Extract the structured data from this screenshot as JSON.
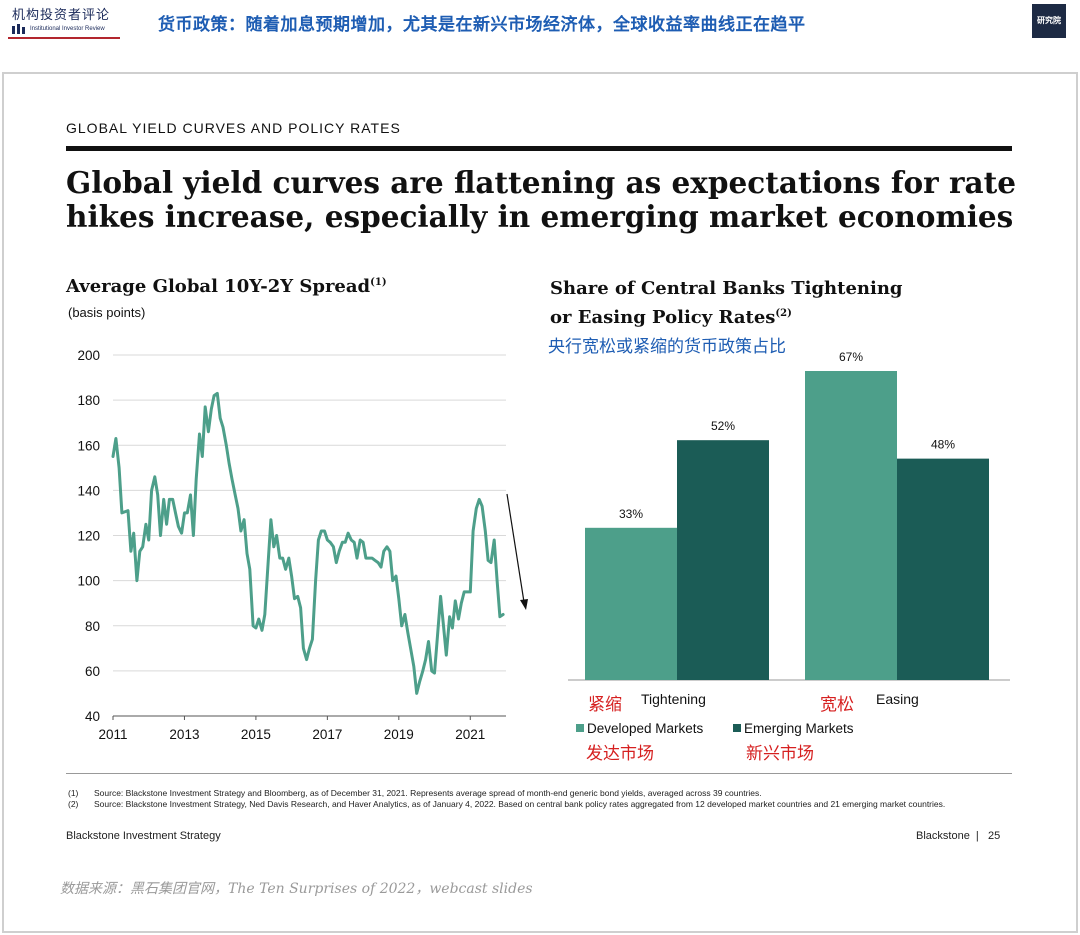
{
  "header": {
    "logo_cn": "机构投资者评论",
    "logo_en": "Institutional Investor Review",
    "headline": "货币政策：随着加息预期增加，尤其是在新兴市场经济体，全球收益率曲线正在趋平",
    "corner_logo_text": "研究院"
  },
  "slide": {
    "section_label": "GLOBAL YIELD CURVES AND POLICY RATES",
    "title_line1": "Global yield curves are flattening as expectations for rate",
    "title_line2": "hikes increase, especially in emerging market economies"
  },
  "left_chart": {
    "title": "Average Global 10Y-2Y Spread",
    "title_note": "(1)",
    "subtitle": "(basis points)"
  },
  "right_chart": {
    "title_line1": "Share of Central Banks Tightening",
    "title_line2": "or Easing Policy Rates",
    "title_note": "(2)",
    "cn_title": "央行宽松或紧缩的货币政策占比",
    "tightening_cn": "紧缩",
    "tightening_en": "Tightening",
    "easing_cn": "宽松",
    "easing_en": "Easing",
    "legend_dev": "Developed Markets",
    "legend_dev_cn": "发达市场",
    "legend_em": "Emerging Markets",
    "legend_em_cn": "新兴市场"
  },
  "chart_data": [
    {
      "type": "line",
      "title": "Average Global 10Y-2Y Spread",
      "ylabel": "(basis points)",
      "ylim": [
        40,
        200
      ],
      "xlim": [
        2011,
        2022.0
      ],
      "yticks": [
        40,
        60,
        80,
        100,
        120,
        140,
        160,
        180,
        200
      ],
      "xticks": [
        2011,
        2013,
        2015,
        2017,
        2019,
        2021
      ],
      "grid": true,
      "color": "#4d9f8a",
      "trend_arrow": "down",
      "points": [
        [
          2011.0,
          155
        ],
        [
          2011.08,
          163
        ],
        [
          2011.17,
          150
        ],
        [
          2011.25,
          130
        ],
        [
          2011.42,
          131
        ],
        [
          2011.5,
          113
        ],
        [
          2011.58,
          121
        ],
        [
          2011.67,
          100
        ],
        [
          2011.75,
          113
        ],
        [
          2011.83,
          115
        ],
        [
          2011.92,
          125
        ],
        [
          2012.0,
          118
        ],
        [
          2012.08,
          140
        ],
        [
          2012.17,
          146
        ],
        [
          2012.25,
          138
        ],
        [
          2012.33,
          120
        ],
        [
          2012.42,
          136
        ],
        [
          2012.5,
          125
        ],
        [
          2012.58,
          136
        ],
        [
          2012.67,
          136
        ],
        [
          2012.75,
          130
        ],
        [
          2012.83,
          124
        ],
        [
          2012.92,
          121
        ],
        [
          2013.0,
          130
        ],
        [
          2013.08,
          130
        ],
        [
          2013.17,
          138
        ],
        [
          2013.25,
          120
        ],
        [
          2013.33,
          145
        ],
        [
          2013.42,
          165
        ],
        [
          2013.5,
          155
        ],
        [
          2013.58,
          177
        ],
        [
          2013.67,
          166
        ],
        [
          2013.75,
          176
        ],
        [
          2013.83,
          182
        ],
        [
          2013.92,
          183
        ],
        [
          2014.0,
          172
        ],
        [
          2014.08,
          168
        ],
        [
          2014.17,
          160
        ],
        [
          2014.25,
          152
        ],
        [
          2014.33,
          145
        ],
        [
          2014.42,
          138
        ],
        [
          2014.5,
          132
        ],
        [
          2014.58,
          122
        ],
        [
          2014.67,
          127
        ],
        [
          2014.75,
          112
        ],
        [
          2014.83,
          105
        ],
        [
          2014.92,
          80
        ],
        [
          2015.0,
          79
        ],
        [
          2015.08,
          83
        ],
        [
          2015.17,
          78
        ],
        [
          2015.25,
          85
        ],
        [
          2015.33,
          105
        ],
        [
          2015.42,
          127
        ],
        [
          2015.5,
          115
        ],
        [
          2015.58,
          120
        ],
        [
          2015.67,
          110
        ],
        [
          2015.75,
          110
        ],
        [
          2015.83,
          105
        ],
        [
          2015.92,
          110
        ],
        [
          2016.0,
          102
        ],
        [
          2016.08,
          92
        ],
        [
          2016.17,
          93
        ],
        [
          2016.25,
          88
        ],
        [
          2016.33,
          70
        ],
        [
          2016.42,
          65
        ],
        [
          2016.5,
          70
        ],
        [
          2016.58,
          74
        ],
        [
          2016.67,
          100
        ],
        [
          2016.75,
          118
        ],
        [
          2016.83,
          122
        ],
        [
          2016.92,
          122
        ],
        [
          2017.0,
          118
        ],
        [
          2017.08,
          117
        ],
        [
          2017.17,
          115
        ],
        [
          2017.25,
          108
        ],
        [
          2017.33,
          113
        ],
        [
          2017.42,
          117
        ],
        [
          2017.5,
          117
        ],
        [
          2017.58,
          121
        ],
        [
          2017.67,
          118
        ],
        [
          2017.75,
          117
        ],
        [
          2017.83,
          110
        ],
        [
          2017.92,
          118
        ],
        [
          2018.0,
          117
        ],
        [
          2018.08,
          110
        ],
        [
          2018.17,
          110
        ],
        [
          2018.25,
          110
        ],
        [
          2018.33,
          109
        ],
        [
          2018.42,
          108
        ],
        [
          2018.5,
          106
        ],
        [
          2018.58,
          113
        ],
        [
          2018.67,
          115
        ],
        [
          2018.75,
          113
        ],
        [
          2018.83,
          100
        ],
        [
          2018.92,
          102
        ],
        [
          2019.0,
          92
        ],
        [
          2019.08,
          80
        ],
        [
          2019.17,
          85
        ],
        [
          2019.25,
          77
        ],
        [
          2019.33,
          70
        ],
        [
          2019.42,
          62
        ],
        [
          2019.5,
          50
        ],
        [
          2019.58,
          55
        ],
        [
          2019.67,
          60
        ],
        [
          2019.75,
          65
        ],
        [
          2019.83,
          73
        ],
        [
          2019.92,
          60
        ],
        [
          2020.0,
          59
        ],
        [
          2020.08,
          75
        ],
        [
          2020.17,
          93
        ],
        [
          2020.25,
          80
        ],
        [
          2020.33,
          67
        ],
        [
          2020.42,
          84
        ],
        [
          2020.5,
          79
        ],
        [
          2020.58,
          91
        ],
        [
          2020.67,
          83
        ],
        [
          2020.75,
          90
        ],
        [
          2020.83,
          95
        ],
        [
          2020.92,
          95
        ],
        [
          2021.0,
          95
        ],
        [
          2021.08,
          122
        ],
        [
          2021.17,
          132
        ],
        [
          2021.25,
          136
        ],
        [
          2021.33,
          133
        ],
        [
          2021.42,
          122
        ],
        [
          2021.5,
          109
        ],
        [
          2021.58,
          108
        ],
        [
          2021.67,
          118
        ],
        [
          2021.75,
          100
        ],
        [
          2021.83,
          84
        ],
        [
          2021.92,
          85
        ]
      ]
    },
    {
      "type": "bar",
      "title": "Share of Central Banks Tightening or Easing Policy Rates",
      "categories": [
        "Tightening",
        "Easing"
      ],
      "series": [
        {
          "name": "Developed Markets",
          "values": [
            33,
            67
          ],
          "color": "#4d9f8a"
        },
        {
          "name": "Emerging Markets",
          "values": [
            52,
            48
          ],
          "color": "#1b5c56"
        }
      ],
      "value_suffix": "%",
      "ylim": [
        0,
        67
      ],
      "legend": "bottom-left"
    }
  ],
  "footnotes": [
    {
      "num": "(1)",
      "text": "Source: Blackstone Investment Strategy and Bloomberg, as of December 31, 2021. Represents average spread of month-end generic bond yields, averaged across 39 countries."
    },
    {
      "num": "(2)",
      "text": "Source: Blackstone Investment Strategy, Ned Davis Research, and Haver Analytics, as of January 4, 2022. Based on central bank policy rates aggregated from 12 developed market countries and 21 emerging market countries."
    }
  ],
  "footer": {
    "left": "Blackstone Investment Strategy",
    "right": "Blackstone  |   25"
  },
  "source_note": "数据来源：黑石集团官网，The Ten Surprises of 2022，webcast slides"
}
